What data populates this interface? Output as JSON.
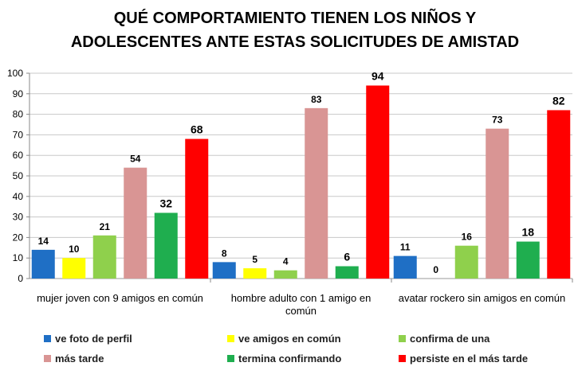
{
  "chart_data": {
    "type": "bar",
    "title_lines": [
      "QUÉ COMPORTAMIENTO TIENEN LOS NIÑOS Y",
      "ADOLESCENTES ANTE ESTAS SOLICITUDES DE AMISTAD"
    ],
    "categories": [
      [
        "mujer joven con 9 amigos en común"
      ],
      [
        "hombre adulto con 1 amigo en",
        "común"
      ],
      [
        "avatar rockero sin amigos en común"
      ]
    ],
    "series": [
      {
        "name": "ve foto de perfil",
        "color": "#1f6fc5",
        "values": [
          14,
          8,
          11
        ]
      },
      {
        "name": "ve amigos en común",
        "color": "#ffff00",
        "values": [
          10,
          5,
          0
        ]
      },
      {
        "name": "confirma de una",
        "color": "#8fd04c",
        "values": [
          21,
          4,
          16
        ]
      },
      {
        "name": "más tarde",
        "color": "#d99594",
        "values": [
          54,
          83,
          73
        ]
      },
      {
        "name": "termina confirmando",
        "color": "#1fae4f",
        "values": [
          32,
          6,
          18
        ]
      },
      {
        "name": "persiste en el más tarde",
        "color": "#ff0000",
        "values": [
          68,
          94,
          82
        ]
      }
    ],
    "ylim": [
      0,
      100
    ],
    "yticks": [
      "0",
      "10",
      "20",
      "30",
      "40",
      "50",
      "60",
      "70",
      "80",
      "90",
      "100"
    ],
    "grid": true,
    "legend_position": "bottom"
  }
}
